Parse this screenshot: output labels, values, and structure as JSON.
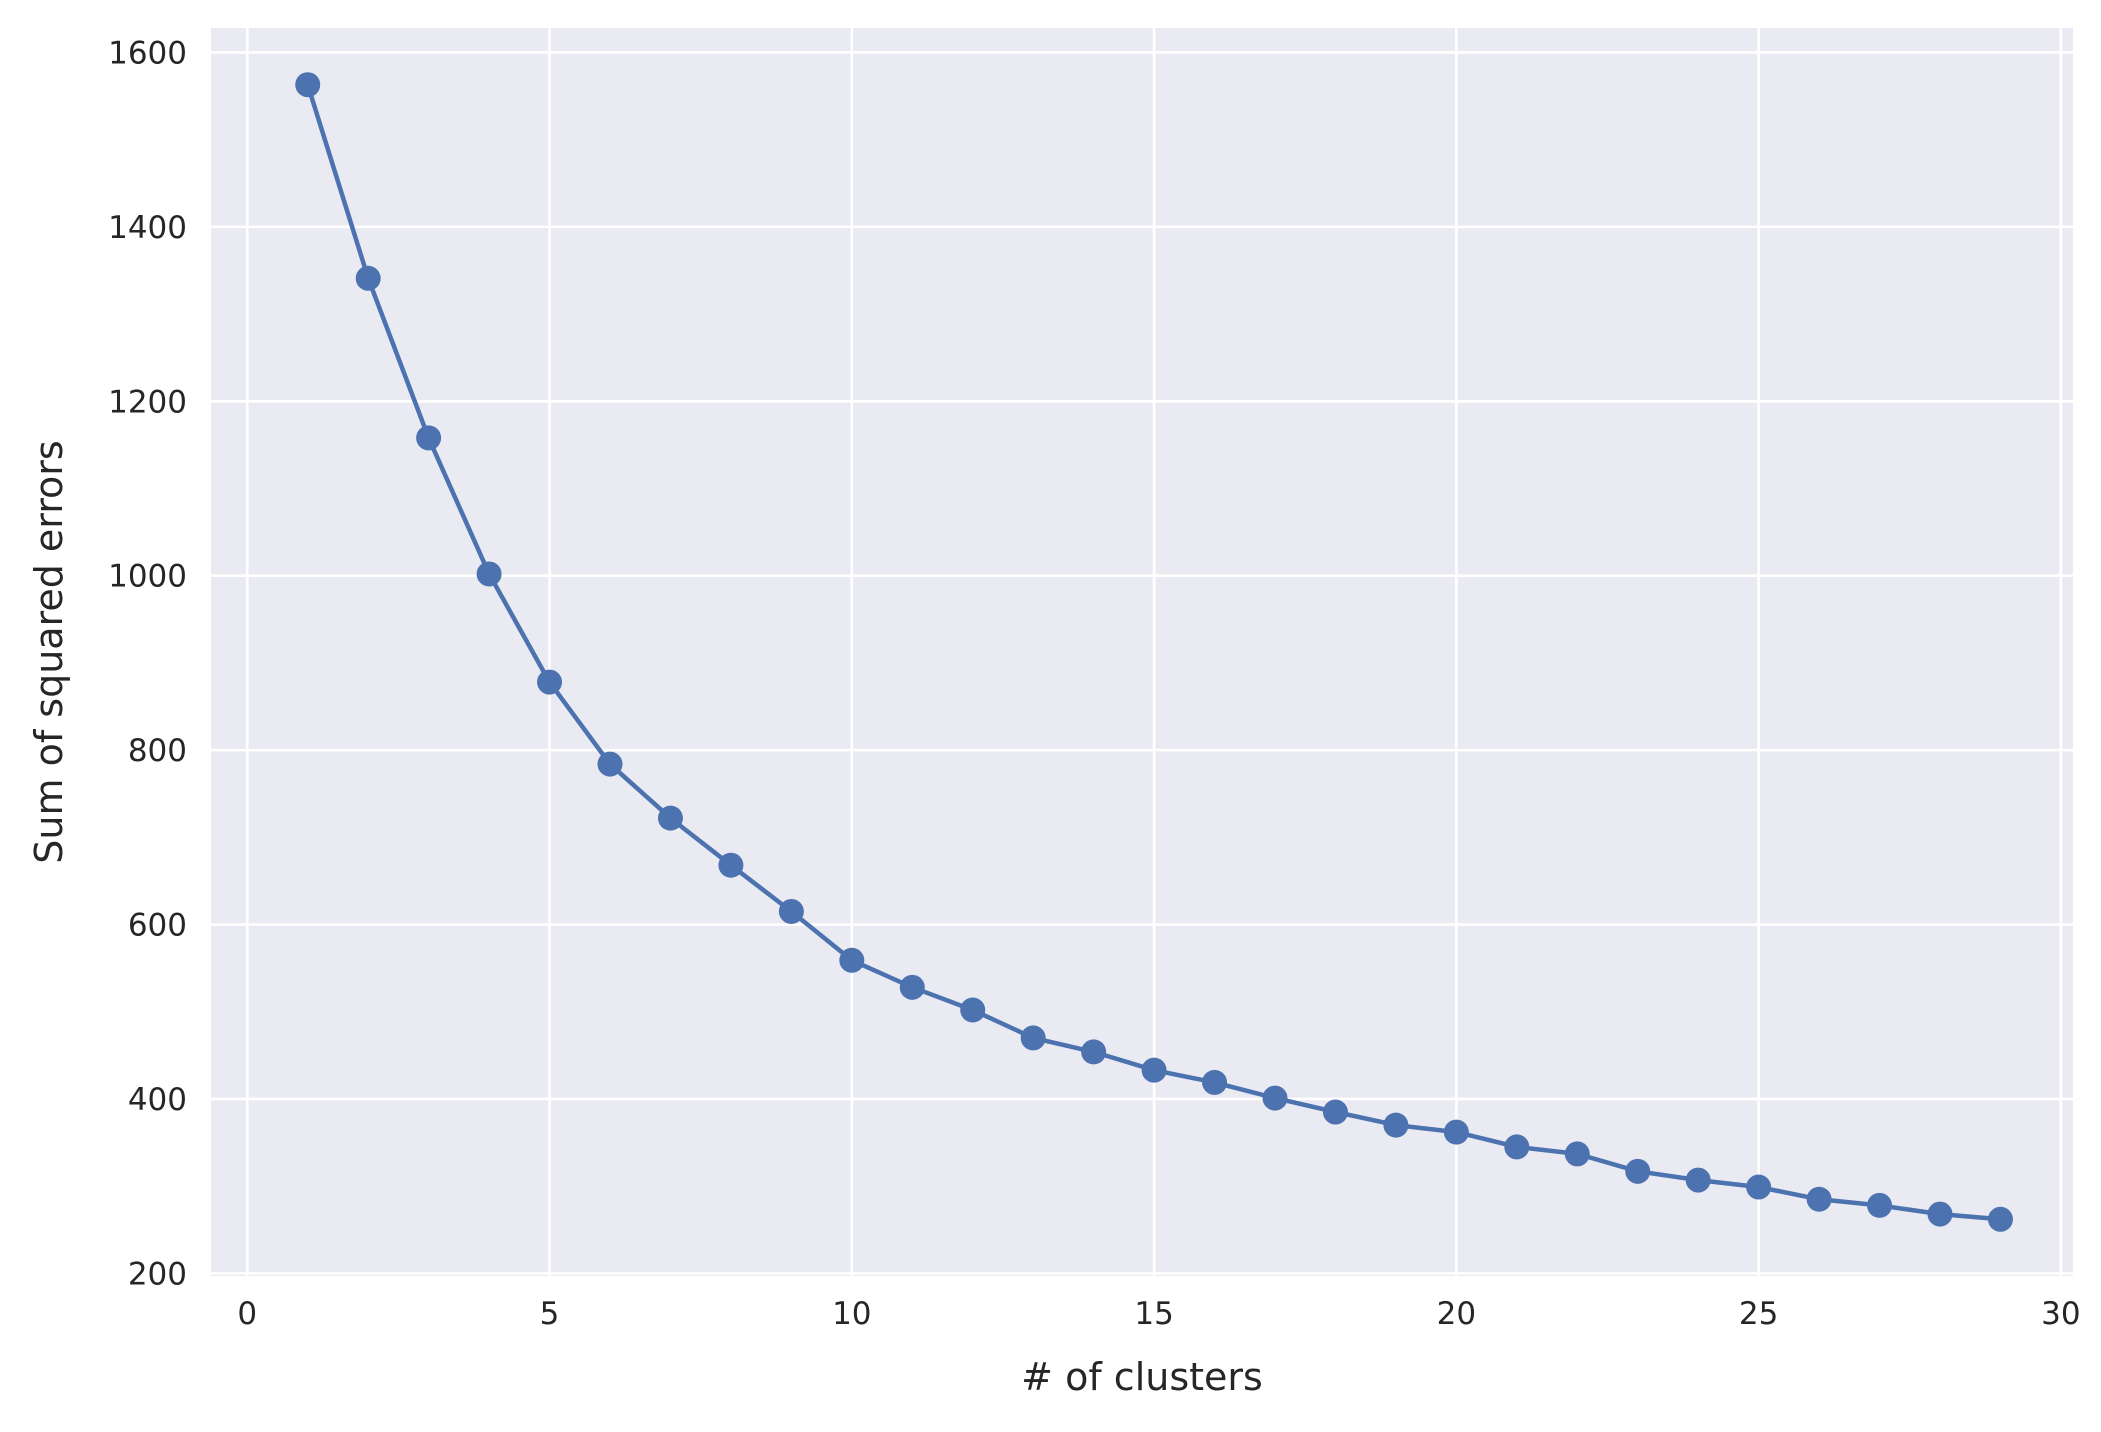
{
  "chart_data": {
    "type": "line",
    "title": "",
    "xlabel": "# of clusters",
    "ylabel": "Sum of squared errors",
    "xlim": [
      -0.6,
      30.2
    ],
    "ylim": [
      197,
      1628
    ],
    "xticks": [
      0,
      5,
      10,
      15,
      20,
      25,
      30
    ],
    "yticks": [
      200,
      400,
      600,
      800,
      1000,
      1200,
      1400,
      1600
    ],
    "grid": true,
    "legend": "none",
    "style": {
      "background": "#EAEAF2",
      "grid_color": "#FFFFFF",
      "line_color": "#4C72B0",
      "marker": "circle"
    },
    "series": [
      {
        "x": [
          1,
          2,
          3,
          4,
          5,
          6,
          7,
          8,
          9,
          10,
          11,
          12,
          13,
          14,
          15,
          16,
          17,
          18,
          19,
          20,
          21,
          22,
          23,
          24,
          25,
          26,
          27,
          28,
          29
        ],
        "values": [
          1563,
          1341,
          1158,
          1002,
          878,
          784,
          722,
          668,
          615,
          559,
          528,
          502,
          470,
          454,
          433,
          419,
          401,
          385,
          370,
          362,
          345,
          337,
          317,
          307,
          299,
          285,
          278,
          268,
          262
        ]
      }
    ]
  }
}
